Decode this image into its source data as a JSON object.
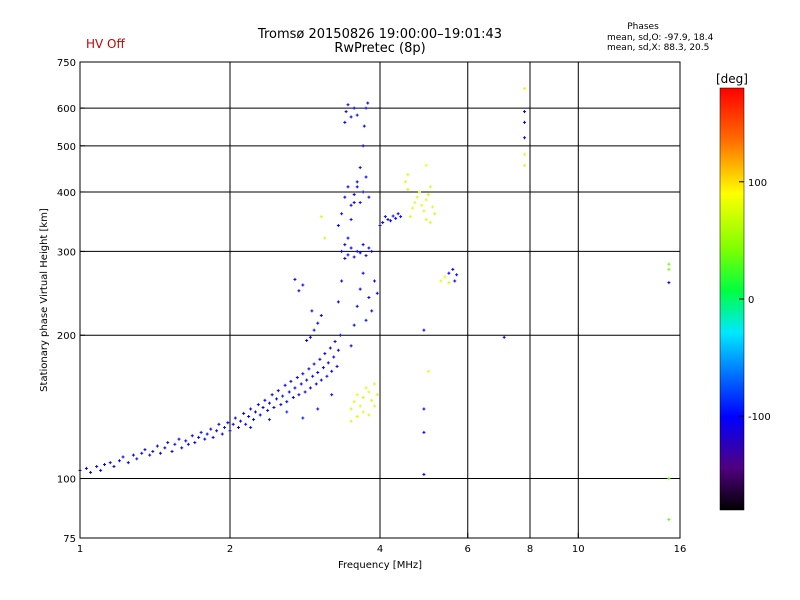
{
  "hv_status": "HV Off",
  "colors": {
    "hv_status": "#cc0000",
    "axes": "#000000",
    "grid": "#000000"
  },
  "phase_summary": {
    "title": "Phases",
    "o_line": "mean, sd,O: -97.9, 18.4",
    "x_line": "mean, sd,X: 88.3, 20.5"
  },
  "chart_data": {
    "type": "scatter",
    "title": "Tromsø 20150826 19:00:00–19:01:43",
    "subtitle": "RwPretec (8p)",
    "xlabel": "Frequency [MHz]",
    "ylabel": "Stationary phase Virtual Height [km]",
    "x_scale": "log",
    "y_scale": "log",
    "xlim": [
      1,
      16
    ],
    "ylim": [
      75,
      750
    ],
    "x_ticks": [
      1,
      2,
      4,
      6,
      8,
      10,
      16
    ],
    "x_grid": [
      2,
      4,
      6,
      8,
      10
    ],
    "y_ticks": [
      75,
      100,
      200,
      300,
      400,
      500,
      600,
      750
    ],
    "y_grid": [
      100,
      200,
      300,
      400,
      500,
      600
    ],
    "grid": true,
    "colorbar": {
      "label": "[deg]",
      "range": [
        -180,
        180
      ],
      "ticks": [
        100,
        0,
        -100
      ]
    },
    "series": [
      {
        "points": [
          [
            1.0,
            104,
            -105
          ],
          [
            1.03,
            105,
            -100
          ],
          [
            1.05,
            103,
            -110
          ],
          [
            1.08,
            106,
            -95
          ],
          [
            1.1,
            104,
            -108
          ],
          [
            1.12,
            107,
            -100
          ],
          [
            1.15,
            108,
            -110
          ],
          [
            1.17,
            106,
            -102
          ],
          [
            1.2,
            109,
            -98
          ],
          [
            1.22,
            111,
            -105
          ],
          [
            1.25,
            108,
            -112
          ],
          [
            1.28,
            112,
            -100
          ],
          [
            1.3,
            110,
            -95
          ],
          [
            1.33,
            113,
            -108
          ],
          [
            1.35,
            115,
            -100
          ],
          [
            1.38,
            112,
            -110
          ],
          [
            1.4,
            114,
            -96
          ],
          [
            1.43,
            117,
            -104
          ],
          [
            1.45,
            113,
            -108
          ],
          [
            1.48,
            116,
            -100
          ],
          [
            1.5,
            119,
            -112
          ],
          [
            1.53,
            114,
            -102
          ],
          [
            1.55,
            118,
            -96
          ],
          [
            1.58,
            121,
            -108
          ],
          [
            1.6,
            116,
            -100
          ],
          [
            1.63,
            120,
            -110
          ],
          [
            1.65,
            118,
            -98
          ],
          [
            1.68,
            123,
            -105
          ],
          [
            1.7,
            119,
            -110
          ],
          [
            1.73,
            122,
            -100
          ],
          [
            1.75,
            125,
            -94
          ],
          [
            1.78,
            121,
            -108
          ],
          [
            1.8,
            124,
            -100
          ],
          [
            1.83,
            127,
            -112
          ],
          [
            1.85,
            122,
            -98
          ],
          [
            1.88,
            126,
            -104
          ],
          [
            1.9,
            130,
            -100
          ],
          [
            1.93,
            124,
            -110
          ],
          [
            1.95,
            128,
            -94
          ],
          [
            1.98,
            131,
            -102
          ],
          [
            2.0,
            126,
            -100
          ],
          [
            2.03,
            130,
            -106
          ],
          [
            2.05,
            134,
            -98
          ],
          [
            2.08,
            128,
            -110
          ],
          [
            2.1,
            132,
            -100
          ],
          [
            2.13,
            137,
            -104
          ],
          [
            2.15,
            130,
            -96
          ],
          [
            2.18,
            135,
            -108
          ],
          [
            2.2,
            140,
            -100
          ],
          [
            2.23,
            133,
            -102
          ],
          [
            2.25,
            138,
            -112
          ],
          [
            2.28,
            143,
            -98
          ],
          [
            2.3,
            136,
            -104
          ],
          [
            2.33,
            141,
            -100
          ],
          [
            2.35,
            146,
            -108
          ],
          [
            2.38,
            139,
            -96
          ],
          [
            2.4,
            144,
            -102
          ],
          [
            2.43,
            150,
            -100
          ],
          [
            2.45,
            141,
            -110
          ],
          [
            2.48,
            147,
            -98
          ],
          [
            2.5,
            153,
            -104
          ],
          [
            2.53,
            143,
            -100
          ],
          [
            2.55,
            149,
            -92
          ],
          [
            2.58,
            157,
            -106
          ],
          [
            2.6,
            145,
            -100
          ],
          [
            2.63,
            152,
            -98
          ],
          [
            2.65,
            160,
            -110
          ],
          [
            2.68,
            148,
            -100
          ],
          [
            2.7,
            155,
            -104
          ],
          [
            2.73,
            163,
            -96
          ],
          [
            2.75,
            150,
            -108
          ],
          [
            2.78,
            158,
            -100
          ],
          [
            2.8,
            166,
            -102
          ],
          [
            2.83,
            152,
            -110
          ],
          [
            2.85,
            161,
            -98
          ],
          [
            2.88,
            170,
            -104
          ],
          [
            2.9,
            155,
            -100
          ],
          [
            2.93,
            164,
            -96
          ],
          [
            2.95,
            174,
            -108
          ],
          [
            2.98,
            158,
            -100
          ],
          [
            3.0,
            167,
            -104
          ],
          [
            3.03,
            178,
            -98
          ],
          [
            3.05,
            161,
            -110
          ],
          [
            3.08,
            171,
            -100
          ],
          [
            3.1,
            183,
            -104
          ],
          [
            3.13,
            164,
            -96
          ],
          [
            3.15,
            175,
            -108
          ],
          [
            3.18,
            188,
            -100
          ],
          [
            3.2,
            168,
            -102
          ],
          [
            3.23,
            180,
            -110
          ],
          [
            3.25,
            194,
            -98
          ],
          [
            3.28,
            172,
            -104
          ],
          [
            3.3,
            186,
            -100
          ],
          [
            3.33,
            200,
            -96
          ],
          [
            2.2,
            128,
            -95
          ],
          [
            2.4,
            133,
            -90
          ],
          [
            2.6,
            138,
            -88
          ],
          [
            2.8,
            134,
            -92
          ],
          [
            3.0,
            140,
            -96
          ],
          [
            3.2,
            150,
            -98
          ],
          [
            2.9,
            198,
            -100
          ],
          [
            2.95,
            205,
            -96
          ],
          [
            3.0,
            212,
            -104
          ],
          [
            2.85,
            195,
            -102
          ],
          [
            3.05,
            220,
            -100
          ],
          [
            2.92,
            225,
            -98
          ],
          [
            2.7,
            262,
            -100
          ],
          [
            2.8,
            255,
            -98
          ],
          [
            2.75,
            248,
            -104
          ],
          [
            3.3,
            235,
            -100
          ],
          [
            3.35,
            260,
            -104
          ],
          [
            3.4,
            290,
            -98
          ],
          [
            3.45,
            320,
            -100
          ],
          [
            3.5,
            350,
            -96
          ],
          [
            3.55,
            380,
            -104
          ],
          [
            3.6,
            410,
            -100
          ],
          [
            3.65,
            450,
            -98
          ],
          [
            3.7,
            500,
            -104
          ],
          [
            3.72,
            550,
            -100
          ],
          [
            3.75,
            600,
            -96
          ],
          [
            3.78,
            615,
            -102
          ],
          [
            3.35,
            300,
            -100
          ],
          [
            3.4,
            310,
            -104
          ],
          [
            3.45,
            295,
            -98
          ],
          [
            3.5,
            305,
            -100
          ],
          [
            3.55,
            292,
            -104
          ],
          [
            3.6,
            300,
            -96
          ],
          [
            3.65,
            298,
            -102
          ],
          [
            3.7,
            310,
            -100
          ],
          [
            3.75,
            294,
            -98
          ],
          [
            3.8,
            305,
            -104
          ],
          [
            3.85,
            300,
            -100
          ],
          [
            3.3,
            340,
            -100
          ],
          [
            3.35,
            360,
            -96
          ],
          [
            3.4,
            390,
            -104
          ],
          [
            3.45,
            410,
            -100
          ],
          [
            3.5,
            375,
            -98
          ],
          [
            3.55,
            395,
            -104
          ],
          [
            3.6,
            420,
            -100
          ],
          [
            3.65,
            380,
            -96
          ],
          [
            3.7,
            400,
            -104
          ],
          [
            3.75,
            430,
            -100
          ],
          [
            3.8,
            390,
            -98
          ],
          [
            3.5,
            190,
            -100
          ],
          [
            3.55,
            210,
            -104
          ],
          [
            3.6,
            230,
            -98
          ],
          [
            3.65,
            250,
            -100
          ],
          [
            3.7,
            270,
            -104
          ],
          [
            3.75,
            215,
            -96
          ],
          [
            3.8,
            240,
            -100
          ],
          [
            3.85,
            225,
            -104
          ],
          [
            3.9,
            260,
            -98
          ],
          [
            3.95,
            245,
            -100
          ],
          [
            3.4,
            560,
            -100
          ],
          [
            3.42,
            590,
            -104
          ],
          [
            3.45,
            610,
            -98
          ],
          [
            3.5,
            575,
            -100
          ],
          [
            3.55,
            600,
            -104
          ],
          [
            3.6,
            580,
            -96
          ],
          [
            4.0,
            340,
            -100
          ],
          [
            4.05,
            345,
            -104
          ],
          [
            4.1,
            355,
            -98
          ],
          [
            4.15,
            350,
            -100
          ],
          [
            4.2,
            348,
            -104
          ],
          [
            4.25,
            356,
            -96
          ],
          [
            4.3,
            352,
            -100
          ],
          [
            4.35,
            360,
            -104
          ],
          [
            4.4,
            355,
            -98
          ],
          [
            5.5,
            270,
            -100
          ],
          [
            5.6,
            275,
            -104
          ],
          [
            5.7,
            268,
            -98
          ],
          [
            5.65,
            260,
            -100
          ],
          [
            4.9,
            205,
            -100
          ],
          [
            4.9,
            102,
            -100
          ],
          [
            4.9,
            140,
            -104
          ],
          [
            4.9,
            125,
            -98
          ],
          [
            7.1,
            198,
            -110
          ],
          [
            7.8,
            590,
            -100
          ],
          [
            7.8,
            560,
            -104
          ],
          [
            7.8,
            520,
            -98
          ],
          [
            15.2,
            258,
            -100
          ]
        ]
      },
      {
        "points": [
          [
            3.5,
            140,
            80
          ],
          [
            3.55,
            145,
            85
          ],
          [
            3.6,
            150,
            90
          ],
          [
            3.65,
            142,
            88
          ],
          [
            3.7,
            148,
            82
          ],
          [
            3.75,
            155,
            86
          ],
          [
            3.8,
            152,
            90
          ],
          [
            3.85,
            146,
            84
          ],
          [
            3.9,
            158,
            88
          ],
          [
            3.95,
            150,
            82
          ],
          [
            3.6,
            135,
            86
          ],
          [
            3.7,
            138,
            90
          ],
          [
            3.8,
            136,
            84
          ],
          [
            3.9,
            142,
            88
          ],
          [
            3.5,
            132,
            82
          ],
          [
            4.6,
            355,
            85
          ],
          [
            4.65,
            370,
            90
          ],
          [
            4.7,
            380,
            88
          ],
          [
            4.75,
            390,
            82
          ],
          [
            4.8,
            400,
            86
          ],
          [
            4.85,
            375,
            90
          ],
          [
            4.9,
            365,
            84
          ],
          [
            4.95,
            385,
            88
          ],
          [
            5.0,
            395,
            82
          ],
          [
            5.05,
            410,
            86
          ],
          [
            5.1,
            372,
            90
          ],
          [
            5.15,
            360,
            84
          ],
          [
            4.5,
            420,
            88
          ],
          [
            4.55,
            405,
            82
          ],
          [
            4.95,
            350,
            86
          ],
          [
            5.05,
            345,
            90
          ],
          [
            5.3,
            260,
            88
          ],
          [
            5.5,
            258,
            82
          ],
          [
            5.4,
            265,
            86
          ],
          [
            3.1,
            320,
            80
          ],
          [
            3.05,
            355,
            84
          ],
          [
            5.0,
            168,
            90
          ],
          [
            4.95,
            455,
            96
          ],
          [
            4.55,
            435,
            88
          ],
          [
            7.8,
            660,
            92
          ],
          [
            7.8,
            480,
            90
          ],
          [
            7.8,
            455,
            86
          ],
          [
            15.2,
            100,
            40
          ],
          [
            15.2,
            282,
            40
          ],
          [
            15.2,
            275,
            45
          ],
          [
            15.2,
            82,
            38
          ]
        ]
      }
    ]
  }
}
